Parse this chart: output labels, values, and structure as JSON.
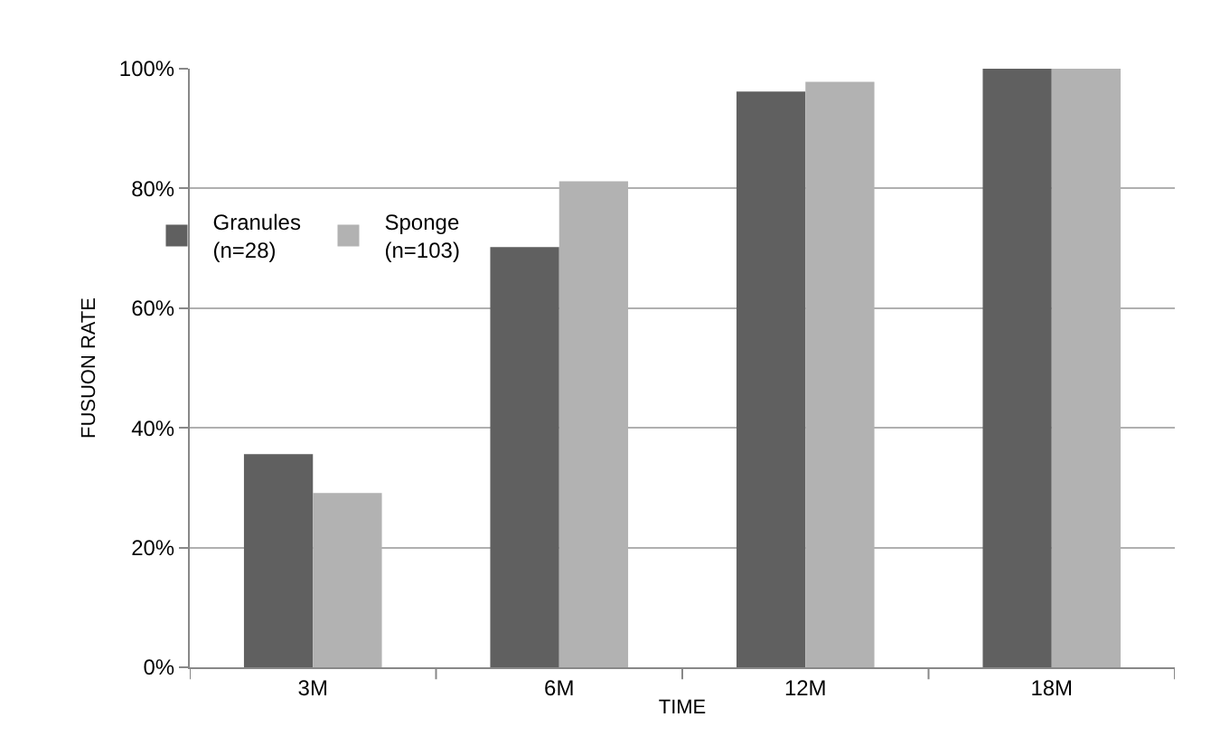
{
  "chart_data": {
    "type": "bar",
    "xlabel": "TIME",
    "ylabel": "FUSUON RATE",
    "categories": [
      "3M",
      "6M",
      "12M",
      "18M"
    ],
    "series": [
      {
        "name": "Granules\n(n=28)",
        "color": "#606060",
        "values": [
          35.6,
          70.2,
          96.2,
          100
        ]
      },
      {
        "name": "Sponge\n(n=103)",
        "color": "#b2b2b2",
        "values": [
          29.1,
          81.2,
          97.8,
          100
        ]
      }
    ],
    "ylim": [
      0,
      100
    ],
    "yticks": [
      {
        "value": 0,
        "label": "0%"
      },
      {
        "value": 20,
        "label": "20%"
      },
      {
        "value": 40,
        "label": "40%"
      },
      {
        "value": 60,
        "label": "60%"
      },
      {
        "value": 80,
        "label": "80%"
      },
      {
        "value": 100,
        "label": "100%"
      }
    ],
    "grid": "y",
    "legend": "left"
  }
}
